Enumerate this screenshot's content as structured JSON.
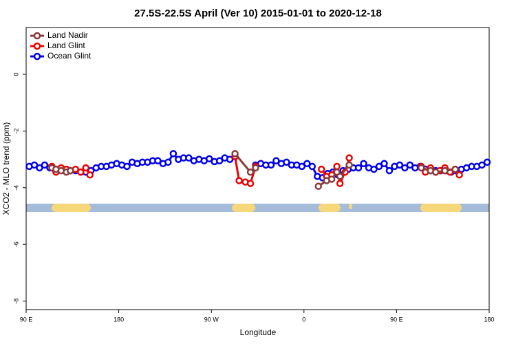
{
  "chart_data": {
    "type": "line",
    "title": "27.5S-22.5S April (Ver 10)   2015-01-01 to 2020-12-18",
    "x_label": "Longitude",
    "y_label": "XCO2 - MLO trend (ppm)",
    "xlim": [
      90,
      540
    ],
    "xticks": [
      {
        "value": 90,
        "label": "90 E"
      },
      180,
      {
        "value": 270,
        "label": "90 W"
      },
      {
        "value": 360,
        "label": "0"
      },
      {
        "value": 450,
        "label": "90 E"
      },
      {
        "value": 540,
        "label": "180"
      }
    ],
    "ylim": [
      -8.3,
      1.65
    ],
    "yticks": [
      0,
      -2,
      -4,
      -6,
      -8
    ],
    "legend": "top-left",
    "series": [
      {
        "name": "Land Nadir",
        "color": "#8b3a3a",
        "x": [
          115,
          119,
          124,
          129,
          133,
          null,
          293,
          308,
          313,
          null,
          374,
          382,
          387,
          392,
          395,
          404,
          null,
          474,
          483,
          488,
          497,
          507
        ],
        "values": [
          -3.3,
          -3.35,
          -3.4,
          -3.45,
          -3.4,
          null,
          -2.8,
          -3.45,
          -3.3,
          null,
          -3.95,
          -3.75,
          -3.7,
          -3.45,
          -3.6,
          -3.2,
          null,
          -3.3,
          -3.4,
          -3.45,
          -3.4,
          -3.35
        ]
      },
      {
        "name": "Land Glint",
        "color": "#ee0000",
        "x": [
          115,
          119,
          124,
          129,
          133,
          138,
          143,
          148,
          152,
          null,
          293,
          297,
          303,
          308,
          313,
          null,
          377,
          382,
          387,
          392,
          395,
          400,
          404,
          null,
          474,
          478,
          483,
          488,
          492,
          497,
          502,
          507,
          511
        ],
        "values": [
          -3.25,
          -3.45,
          -3.3,
          -3.35,
          -3.4,
          -3.35,
          -3.45,
          -3.3,
          -3.55,
          null,
          -2.9,
          -3.75,
          -3.8,
          -3.85,
          -3.25,
          null,
          -3.35,
          -3.6,
          -3.55,
          -3.25,
          -3.85,
          -3.45,
          -2.95,
          null,
          -3.25,
          -3.45,
          -3.3,
          -3.45,
          -3.4,
          -3.3,
          -3.45,
          -3.35,
          -3.55
        ]
      },
      {
        "name": "Ocean Glint",
        "color": "#0000ee",
        "x": [
          93,
          98,
          103,
          108,
          113,
          118,
          123,
          128,
          133,
          138,
          143,
          148,
          153,
          158,
          163,
          168,
          173,
          178,
          183,
          188,
          193,
          198,
          203,
          208,
          213,
          218,
          223,
          228,
          233,
          238,
          243,
          248,
          253,
          258,
          263,
          268,
          273,
          278,
          283,
          288,
          null,
          313,
          318,
          323,
          328,
          333,
          338,
          343,
          348,
          353,
          358,
          363,
          368,
          373,
          378,
          383,
          388,
          393,
          398,
          403,
          408,
          413,
          418,
          423,
          428,
          433,
          438,
          443,
          448,
          453,
          458,
          463,
          468,
          473,
          478,
          483,
          488,
          493,
          498,
          503,
          508,
          513,
          518,
          523,
          528,
          533,
          538
        ],
        "values": [
          -3.25,
          -3.2,
          -3.3,
          -3.2,
          -3.3,
          -3.35,
          -3.35,
          -3.4,
          -3.4,
          -3.4,
          -3.45,
          -3.45,
          -3.4,
          -3.3,
          -3.25,
          -3.25,
          -3.2,
          -3.15,
          -3.2,
          -3.25,
          -3.1,
          -3.15,
          -3.1,
          -3.1,
          -3.05,
          -3.05,
          -3.15,
          -3.1,
          -2.8,
          -3.0,
          -2.95,
          -2.95,
          -3.05,
          -3.0,
          -3.05,
          -2.98,
          -3.08,
          -3.05,
          -2.95,
          -3.0,
          null,
          -3.2,
          -3.15,
          -3.2,
          -3.2,
          -3.05,
          -3.15,
          -3.1,
          -3.2,
          -3.2,
          -3.25,
          -3.15,
          -3.25,
          -3.6,
          -3.65,
          -3.5,
          -3.45,
          -3.55,
          -3.4,
          -3.35,
          -3.3,
          -3.3,
          -3.15,
          -3.3,
          -3.35,
          -3.25,
          -3.15,
          -3.4,
          -3.25,
          -3.2,
          -3.3,
          -3.2,
          -3.3,
          -3.25,
          -3.35,
          -3.4,
          -3.4,
          -3.4,
          -3.4,
          -3.45,
          -3.4,
          -3.35,
          -3.3,
          -3.25,
          -3.25,
          -3.2,
          -3.1
        ]
      }
    ]
  }
}
